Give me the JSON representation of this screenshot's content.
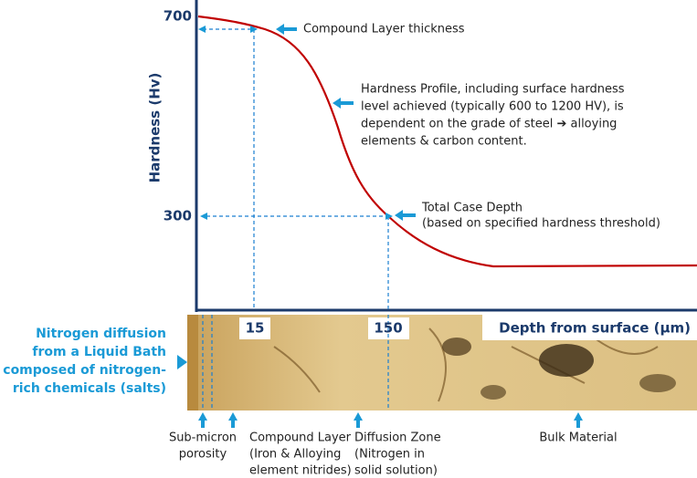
{
  "y_axis": {
    "label": "Hardness (Hv)",
    "ticks": [
      "700",
      "300"
    ]
  },
  "x_axis": {
    "label": "Depth from surface (μm)",
    "ticks": [
      "15",
      "150"
    ]
  },
  "annotations": {
    "compound_layer": "Compound Layer thickness",
    "profile": [
      "Hardness Profile, including surface hardness",
      "level achieved (typically 600 to 1200 HV), is",
      "dependent on the grade of steel ➔ alloying",
      "elements & carbon content."
    ],
    "case_depth": [
      "Total Case Depth",
      "(based on specified hardness threshold)"
    ]
  },
  "side_note": [
    "Nitrogen diffusion",
    "from a Liquid Bath",
    "composed of nitrogen-",
    "rich chemicals (salts)"
  ],
  "zones": [
    {
      "lines": [
        "Sub-micron",
        "porosity"
      ]
    },
    {
      "lines": [
        "Compound Layer",
        "(Iron & Alloying",
        "element nitrides)"
      ]
    },
    {
      "lines": [
        "Diffusion Zone",
        "(Nitrogen in",
        "solid solution)"
      ]
    },
    {
      "lines": [
        "Bulk Material"
      ]
    }
  ]
}
